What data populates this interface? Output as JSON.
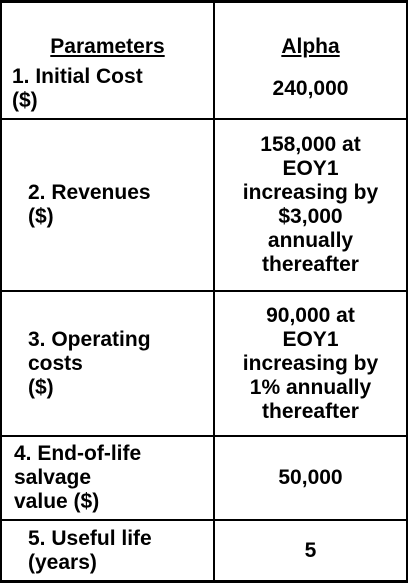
{
  "table": {
    "headers": {
      "parameters": "Parameters",
      "alpha": "Alpha"
    },
    "rows": [
      {
        "label": "1.  Initial Cost\n        ($)",
        "value": "240,000"
      },
      {
        "label": "2.  Revenues\n        ($)",
        "value": "158,000 at\nEOY1\nincreasing by\n$3,000\nannually\nthereafter"
      },
      {
        "label": "3.  Operating\n    costs\n    ($)",
        "value": "90,000 at\nEOY1\nincreasing by\n1% annually\nthereafter"
      },
      {
        "label": "4.  End-of-life\n    salvage\n    value ($)",
        "value": "50,000"
      },
      {
        "label": "5.  Useful life\n      (years)",
        "value": "5"
      }
    ]
  }
}
